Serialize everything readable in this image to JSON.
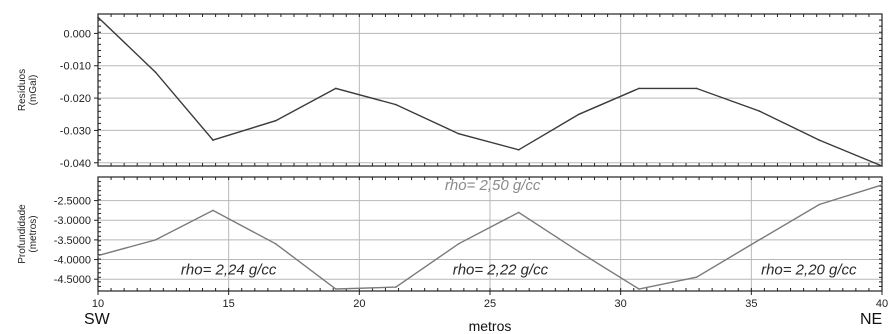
{
  "chart_data": [
    {
      "type": "line",
      "ylabel_lines": [
        "Resíduos",
        "(mGal)"
      ],
      "x": [
        10,
        12.2,
        14.4,
        16.8,
        19.1,
        21.4,
        23.8,
        26.1,
        28.4,
        30.7,
        32.9,
        35.3,
        37.6,
        40
      ],
      "series": [
        {
          "values": [
            0.005,
            -0.012,
            -0.033,
            -0.027,
            -0.017,
            -0.022,
            -0.031,
            -0.036,
            -0.025,
            -0.017,
            -0.017,
            -0.024,
            -0.033,
            -0.041
          ]
        }
      ],
      "xlim": [
        10,
        40
      ],
      "ylim": [
        -0.041,
        0.006
      ],
      "yticks": [
        0.0,
        -0.01,
        -0.02,
        -0.03,
        -0.04
      ],
      "ytick_labels": [
        "0.000",
        "-0.010",
        "-0.020",
        "-0.030",
        "-0.040"
      ],
      "grid_x": [
        20,
        30
      ],
      "line_color": "#3a3a3a"
    },
    {
      "type": "line",
      "ylabel_lines": [
        "Profundidade",
        "(metros)"
      ],
      "x": [
        10,
        12.2,
        14.4,
        16.8,
        19.1,
        21.4,
        23.8,
        26.1,
        28.4,
        30.7,
        32.9,
        35.3,
        37.6,
        40
      ],
      "series": [
        {
          "values": [
            -3.9,
            -3.5,
            -2.75,
            -3.6,
            -4.75,
            -4.7,
            -3.6,
            -2.8,
            -3.8,
            -4.75,
            -4.45,
            -3.5,
            -2.6,
            -2.1
          ]
        }
      ],
      "xlim": [
        10,
        40
      ],
      "ylim": [
        -4.8,
        -1.9
      ],
      "yticks": [
        -2.5,
        -3.0,
        -3.5,
        -4.0,
        -4.5
      ],
      "ytick_labels": [
        "-2.5000",
        "-3.0000",
        "-3.5000",
        "-4.0000",
        "-4.5000"
      ],
      "xticks": [
        10,
        15,
        20,
        25,
        30,
        35,
        40
      ],
      "xtick_labels": [
        "10",
        "15",
        "20",
        "25",
        "30",
        "35",
        "40"
      ],
      "grid_x": [
        15,
        20,
        25,
        30,
        35
      ],
      "line_color": "#7a7a7a",
      "xlabel": "metros",
      "annotations": [
        {
          "text": "rho= 2,24 g/cc",
          "x": 15,
          "y": -4.38,
          "color": "#2a2a2a"
        },
        {
          "text": "rho= 2,50 g/cc",
          "x": 25.1,
          "y": -2.23,
          "color": "#8a8a8a"
        },
        {
          "text": "rho= 2,22 g/cc",
          "x": 25.4,
          "y": -4.38,
          "color": "#2a2a2a"
        },
        {
          "text": "rho= 2,20 g/cc",
          "x": 37.2,
          "y": -4.38,
          "color": "#2a2a2a"
        }
      ]
    }
  ],
  "labels": {
    "left": "SW",
    "right": "NE"
  }
}
